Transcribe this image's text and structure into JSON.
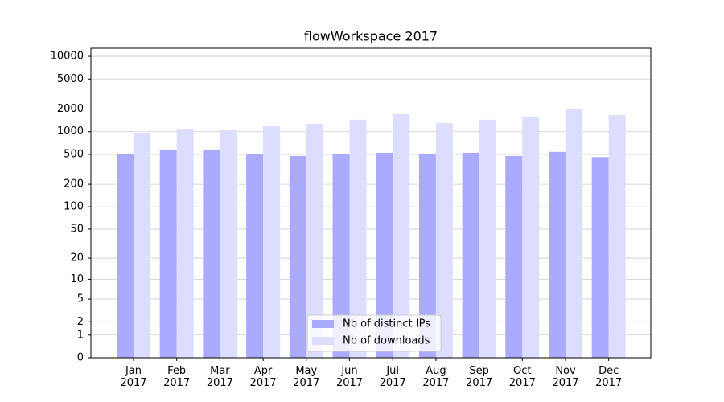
{
  "chart_data": {
    "type": "bar",
    "title": "flowWorkspace 2017",
    "categories": [
      "Jan\n2017",
      "Feb\n2017",
      "Mar\n2017",
      "Apr\n2017",
      "May\n2017",
      "Jun\n2017",
      "Jul\n2017",
      "Aug\n2017",
      "Sep\n2017",
      "Oct\n2017",
      "Nov\n2017",
      "Dec\n2017"
    ],
    "series": [
      {
        "name": "Nb of distinct IPs",
        "color": "#aaaaff",
        "values": [
          500,
          580,
          580,
          510,
          475,
          510,
          525,
          500,
          525,
          475,
          540,
          460
        ]
      },
      {
        "name": "Nb of downloads",
        "color": "#ddddff",
        "values": [
          950,
          1070,
          1040,
          1180,
          1270,
          1440,
          1710,
          1300,
          1440,
          1550,
          2030,
          1660
        ]
      }
    ],
    "yscale": "log1p",
    "ylim": [
      0,
      12800
    ],
    "yticks": [
      0,
      1,
      2,
      5,
      10,
      20,
      50,
      100,
      200,
      500,
      1000,
      2000,
      5000,
      10000
    ],
    "grid": true,
    "legend": "lower center"
  }
}
